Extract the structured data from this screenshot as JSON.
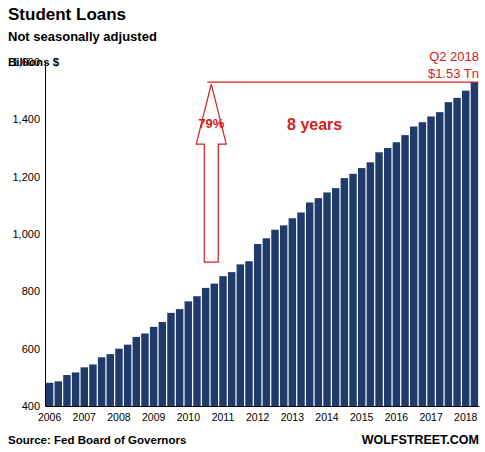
{
  "chart_data": {
    "type": "bar",
    "title": "Student Loans",
    "subtitle": "Not seasonally adjusted",
    "y_label": "Billions $",
    "source": "Source: Fed Board of Governors",
    "credit": "WOLFSTREET.COM",
    "annotations": [
      "Q2 2018",
      "$1.53 Tn",
      "79%",
      "8 years"
    ],
    "categories": [
      "2006",
      null,
      null,
      null,
      "2007",
      null,
      null,
      null,
      "2008",
      null,
      null,
      null,
      "2009",
      null,
      null,
      null,
      "2010",
      null,
      null,
      null,
      "2011",
      null,
      null,
      null,
      "2012",
      null,
      null,
      null,
      "2013",
      null,
      null,
      null,
      "2014",
      null,
      null,
      null,
      "2015",
      null,
      null,
      null,
      "2016",
      null,
      null,
      null,
      "2017",
      null,
      null,
      null,
      "2018",
      null
    ],
    "values": [
      481,
      486,
      508,
      517,
      535,
      545,
      570,
      581,
      600,
      614,
      641,
      653,
      676,
      693,
      725,
      738,
      765,
      783,
      812,
      827,
      853,
      867,
      894,
      905,
      965,
      985,
      1015,
      1030,
      1055,
      1075,
      1110,
      1125,
      1145,
      1160,
      1195,
      1210,
      1230,
      1250,
      1285,
      1300,
      1320,
      1345,
      1375,
      1390,
      1410,
      1425,
      1460,
      1475,
      1500,
      1530
    ],
    "color": "#1f3a6b",
    "ylim": [
      400,
      1600
    ],
    "yticks": [
      400,
      600,
      800,
      {
        "value": 1000,
        "label": "1,000"
      },
      {
        "value": 1200,
        "label": "1,200"
      },
      {
        "value": 1400,
        "label": "1,400"
      },
      {
        "value": 1600,
        "label": "1,600"
      }
    ],
    "grid": false
  }
}
